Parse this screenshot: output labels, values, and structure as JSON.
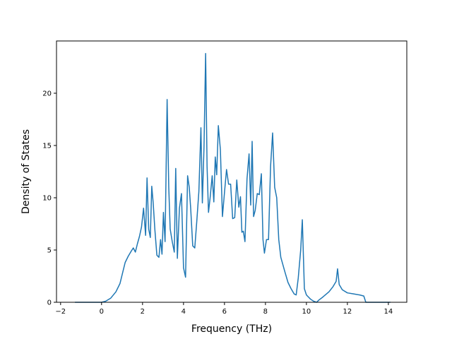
{
  "chart_data": {
    "type": "line",
    "title": "",
    "xlabel": "Frequency (THz)",
    "ylabel": "Density of States",
    "xlim": [
      -2.2,
      14.9
    ],
    "ylim": [
      0,
      25.0
    ],
    "xticks": [
      -2,
      0,
      2,
      4,
      6,
      8,
      10,
      12,
      14
    ],
    "yticks": [
      0,
      5,
      10,
      15,
      20
    ],
    "grid": false,
    "legend": "none",
    "line_color": "#1f77b4",
    "series": [
      {
        "x": [
          -1.3,
          -0.6,
          0.0,
          0.2,
          0.45,
          0.7,
          0.9,
          1.05,
          1.15,
          1.3,
          1.45,
          1.55,
          1.65,
          1.75,
          1.85,
          1.95,
          2.05,
          2.15,
          2.22,
          2.3,
          2.38,
          2.45,
          2.52,
          2.6,
          2.7,
          2.8,
          2.88,
          2.95,
          3.02,
          3.1,
          3.2,
          3.28,
          3.35,
          3.45,
          3.55,
          3.62,
          3.7,
          3.8,
          3.9,
          4.0,
          4.1,
          4.2,
          4.28,
          4.35,
          4.45,
          4.55,
          4.65,
          4.75,
          4.85,
          4.92,
          5.0,
          5.08,
          5.15,
          5.22,
          5.3,
          5.4,
          5.48,
          5.55,
          5.62,
          5.7,
          5.8,
          5.9,
          6.0,
          6.1,
          6.2,
          6.3,
          6.4,
          6.5,
          6.6,
          6.7,
          6.78,
          6.85,
          6.92,
          7.0,
          7.1,
          7.2,
          7.28,
          7.35,
          7.42,
          7.5,
          7.6,
          7.7,
          7.8,
          7.88,
          7.95,
          8.05,
          8.15,
          8.25,
          8.35,
          8.45,
          8.55,
          8.65,
          8.75,
          8.85,
          8.95,
          9.1,
          9.25,
          9.4,
          9.5,
          9.6,
          9.72,
          9.8,
          9.9,
          10.0,
          10.1,
          10.2,
          10.35,
          10.5,
          10.6,
          10.8,
          11.1,
          11.3,
          11.45,
          11.52,
          11.6,
          11.75,
          12.0,
          12.3,
          12.6,
          12.8,
          12.9,
          13.2,
          14.1
        ],
        "y": [
          0.0,
          0.0,
          0.0,
          0.1,
          0.4,
          1.0,
          1.8,
          3.0,
          3.8,
          4.4,
          4.9,
          5.2,
          4.8,
          5.6,
          6.3,
          7.2,
          9.0,
          6.4,
          11.9,
          7.0,
          6.2,
          11.1,
          9.5,
          7.0,
          4.5,
          4.3,
          6.0,
          4.6,
          8.6,
          5.8,
          19.4,
          11.0,
          7.0,
          5.8,
          4.8,
          12.8,
          4.2,
          9.0,
          10.4,
          3.3,
          2.4,
          12.1,
          11.0,
          9.0,
          5.4,
          5.2,
          7.8,
          10.6,
          16.7,
          9.5,
          14.8,
          23.8,
          13.0,
          8.6,
          10.0,
          12.1,
          9.6,
          13.9,
          12.2,
          16.9,
          14.6,
          8.2,
          10.5,
          12.7,
          11.3,
          11.3,
          8.0,
          8.1,
          11.7,
          9.1,
          10.1,
          6.7,
          6.8,
          5.8,
          11.8,
          14.2,
          9.3,
          15.4,
          8.2,
          8.8,
          10.4,
          10.3,
          12.3,
          6.0,
          4.7,
          6.0,
          6.0,
          13.0,
          16.2,
          11.0,
          10.0,
          6.0,
          4.3,
          3.6,
          2.9,
          1.9,
          1.3,
          0.8,
          0.7,
          2.3,
          5.0,
          7.9,
          1.3,
          0.7,
          0.5,
          0.3,
          0.1,
          0.0,
          0.2,
          0.5,
          1.0,
          1.5,
          2.0,
          3.2,
          1.7,
          1.2,
          0.9,
          0.8,
          0.7,
          0.6,
          0.0,
          0.0,
          0.0
        ]
      }
    ]
  }
}
